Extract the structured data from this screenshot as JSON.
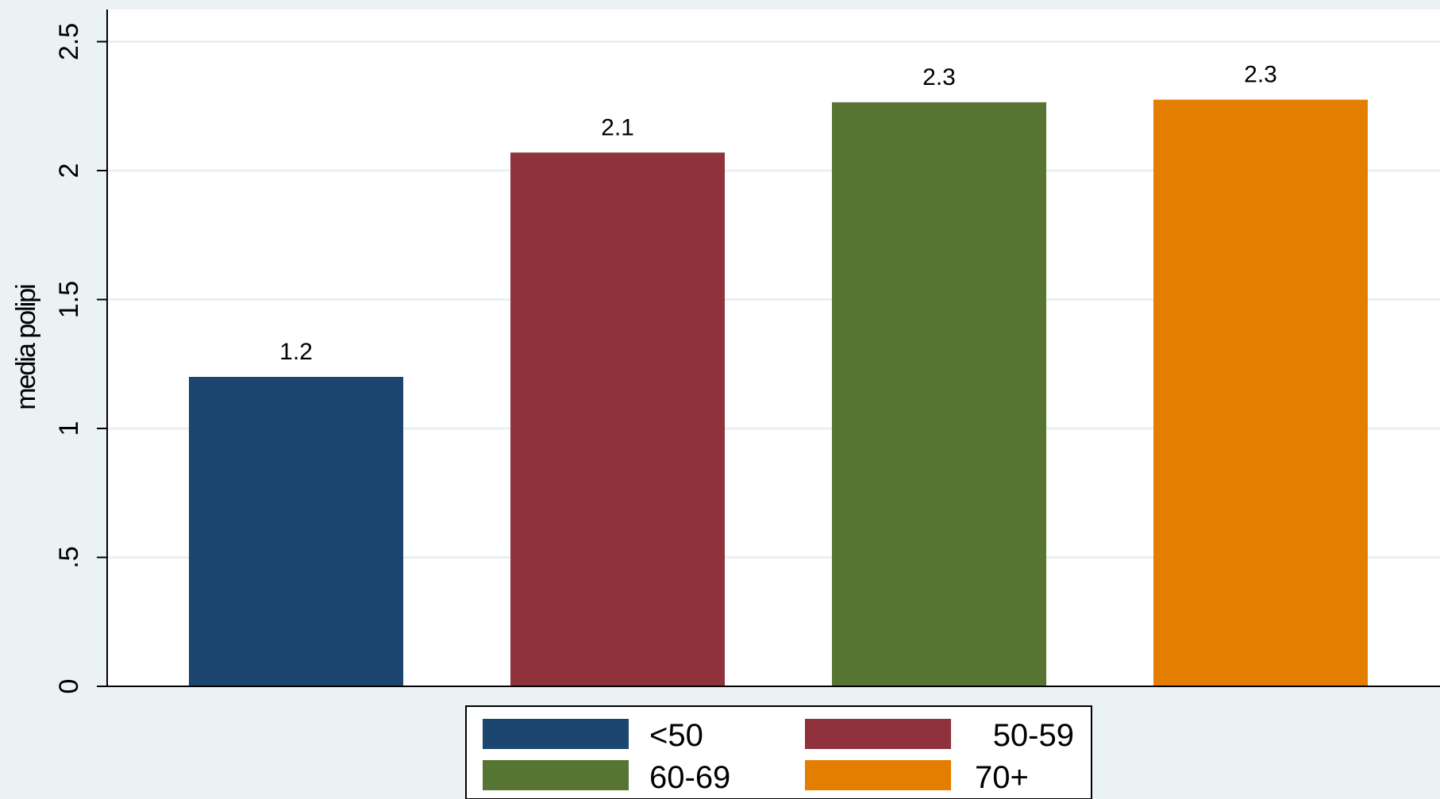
{
  "chart_data": {
    "type": "bar",
    "ylabel": "media polipi",
    "xlabel": "",
    "ylim": [
      0,
      2.6
    ],
    "yticks": [
      {
        "value": 0,
        "label": "0"
      },
      {
        "value": 0.5,
        "label": ".5"
      },
      {
        "value": 1,
        "label": "1"
      },
      {
        "value": 1.5,
        "label": "1.5"
      },
      {
        "value": 2,
        "label": "2"
      },
      {
        "value": 2.5,
        "label": "2.5"
      }
    ],
    "grid": true,
    "legend_position": "bottom",
    "series": [
      {
        "name": "<50",
        "value": 1.2,
        "label": "1.2",
        "color": "#1c466f"
      },
      {
        "name": "50-59",
        "value": 2.07,
        "label": "2.1",
        "color": "#8f323b"
      },
      {
        "name": "60-69",
        "value": 2.265,
        "label": "2.3",
        "color": "#577532"
      },
      {
        "name": "70+",
        "value": 2.275,
        "label": "2.3",
        "color": "#e37e00"
      }
    ]
  }
}
